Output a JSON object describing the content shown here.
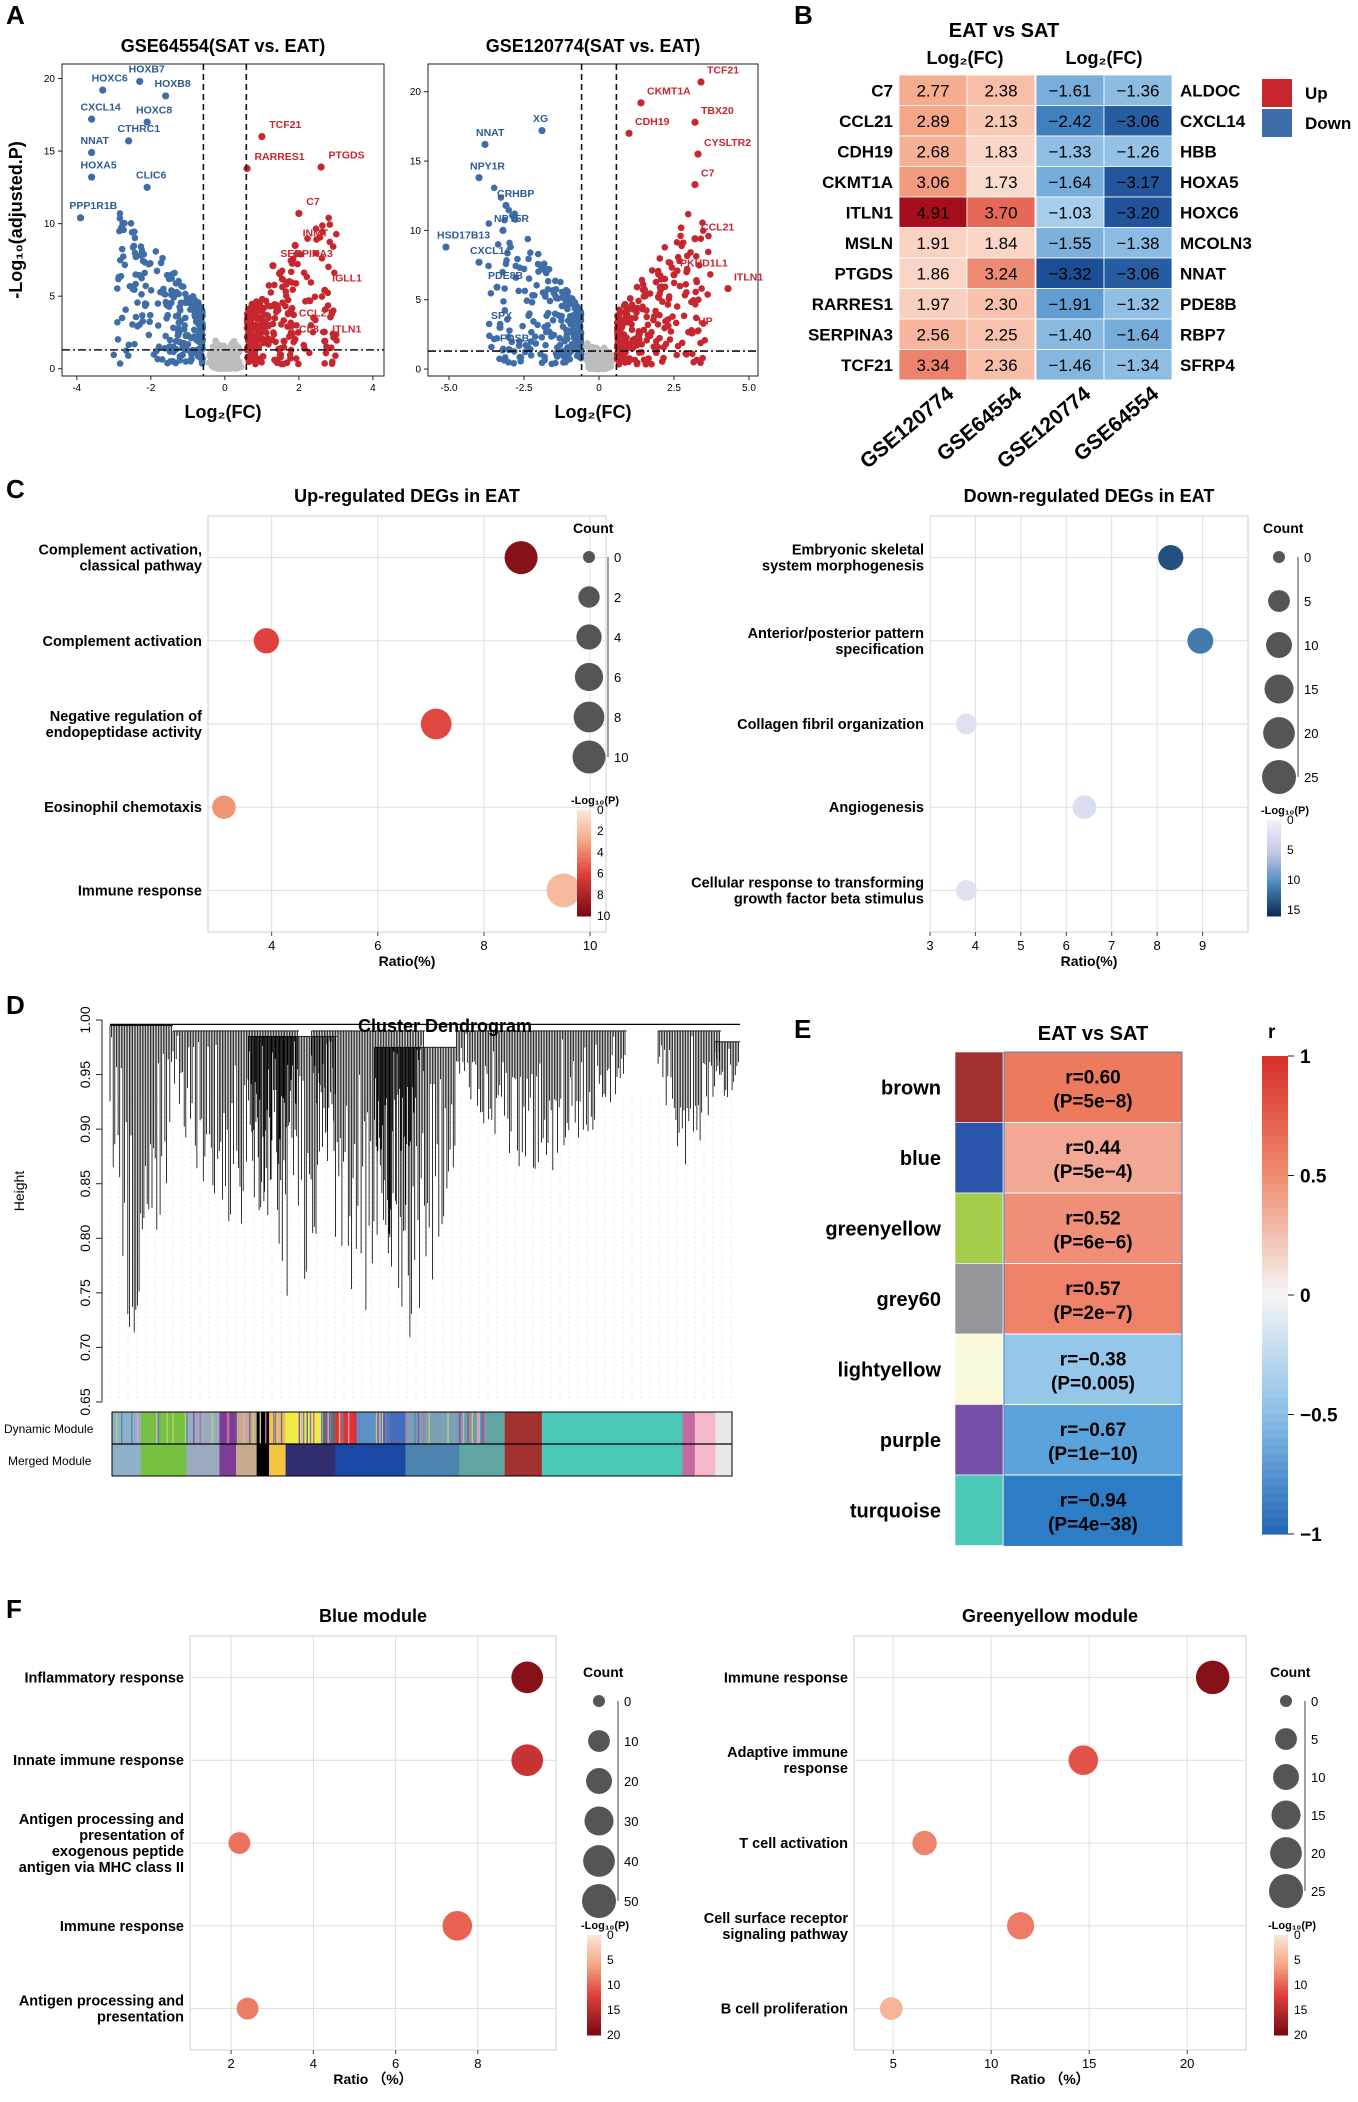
{
  "panels": {
    "A": "A",
    "B": "B",
    "C": "C",
    "D": "D",
    "E": "E",
    "F": "F"
  },
  "colors": {
    "up": "#c8262e",
    "down": "#3f6da8",
    "ns": "#bdbdbd",
    "text_red": "#c8262e",
    "text_blue": "#2e5c93"
  },
  "chart_data": [
    {
      "id": "volcano1",
      "type": "scatter",
      "title": "GSE64554(SAT vs. EAT)",
      "xlabel": "Log₂(FC)",
      "ylabel": "-Log₁₀(adjusted.P)",
      "xlim": [
        -4.4,
        4.3
      ],
      "ylim": [
        -0.5,
        21
      ],
      "xticks": [
        -4,
        -2,
        0,
        2,
        4
      ],
      "xtick_labels": [
        "-4",
        "-2",
        "0",
        "2",
        "4"
      ],
      "yticks": [
        0,
        5,
        10,
        15,
        20
      ],
      "ytick_labels": [
        "0",
        "5",
        "10",
        "15",
        "20"
      ],
      "vlines": [
        -0.58,
        0.58
      ],
      "hline": 1.3,
      "labels_down": [
        {
          "text": "HOXC6",
          "x": -3.6,
          "y": 19.8
        },
        {
          "text": "HOXB7",
          "x": -2.6,
          "y": 20.4
        },
        {
          "text": "HOXB8",
          "x": -1.9,
          "y": 19.4
        },
        {
          "text": "CXCL14",
          "x": -3.9,
          "y": 17.8
        },
        {
          "text": "HOXC8",
          "x": -2.4,
          "y": 17.6
        },
        {
          "text": "CTHRC1",
          "x": -2.9,
          "y": 16.3
        },
        {
          "text": "NNAT",
          "x": -3.9,
          "y": 15.5
        },
        {
          "text": "HOXA5",
          "x": -3.9,
          "y": 13.8
        },
        {
          "text": "CLIC6",
          "x": -2.4,
          "y": 13.1
        },
        {
          "text": "PPP1R1B",
          "x": -4.2,
          "y": 11.0
        }
      ],
      "labels_up": [
        {
          "text": "TCF21",
          "x": 1.2,
          "y": 16.6
        },
        {
          "text": "PTGDS",
          "x": 2.8,
          "y": 14.5
        },
        {
          "text": "RARRES1",
          "x": 0.8,
          "y": 14.4
        },
        {
          "text": "C7",
          "x": 2.2,
          "y": 11.3
        },
        {
          "text": "INMT",
          "x": 2.1,
          "y": 9.1
        },
        {
          "text": "SERPINA3",
          "x": 1.5,
          "y": 7.7
        },
        {
          "text": "IGLL1",
          "x": 2.9,
          "y": 6.0
        },
        {
          "text": "CCL21",
          "x": 2.0,
          "y": 3.6
        },
        {
          "text": "CCL8",
          "x": 1.8,
          "y": 2.5
        },
        {
          "text": "ITLN1",
          "x": 2.9,
          "y": 2.5
        }
      ]
    },
    {
      "id": "volcano2",
      "type": "scatter",
      "title": "GSE120774(SAT vs. EAT)",
      "xlabel": "Log₂(FC)",
      "ylabel": "",
      "xlim": [
        -5.7,
        5.3
      ],
      "ylim": [
        -0.5,
        22
      ],
      "xticks": [
        -5,
        -2.5,
        0,
        2.5,
        5
      ],
      "xtick_labels": [
        "-5.0",
        "-2.5",
        "0",
        "2.5",
        "5.0"
      ],
      "yticks": [
        0,
        5,
        10,
        15,
        20
      ],
      "ytick_labels": [
        "0",
        "5",
        "10",
        "15",
        "20"
      ],
      "vlines": [
        -0.58,
        0.58
      ],
      "hline": 1.3,
      "labels_down": [
        {
          "text": "XG",
          "x": -2.2,
          "y": 17.8
        },
        {
          "text": "NNAT",
          "x": -4.1,
          "y": 16.8
        },
        {
          "text": "NPY1R",
          "x": -4.3,
          "y": 14.4
        },
        {
          "text": "CRHBP",
          "x": -3.4,
          "y": 12.4
        },
        {
          "text": "NPY5R",
          "x": -3.5,
          "y": 10.6
        },
        {
          "text": "HSD17B13",
          "x": -5.4,
          "y": 9.4
        },
        {
          "text": "CXCL14",
          "x": -4.3,
          "y": 8.3
        },
        {
          "text": "PDE8B",
          "x": -3.7,
          "y": 6.5
        },
        {
          "text": "SPX",
          "x": -3.6,
          "y": 3.6
        },
        {
          "text": "FOSB",
          "x": -3.3,
          "y": 2.0
        }
      ],
      "labels_up": [
        {
          "text": "TCF21",
          "x": 3.6,
          "y": 21.3
        },
        {
          "text": "CKMT1A",
          "x": 1.6,
          "y": 19.8
        },
        {
          "text": "TBX20",
          "x": 3.4,
          "y": 18.4
        },
        {
          "text": "CDH19",
          "x": 1.2,
          "y": 17.6
        },
        {
          "text": "CYSLTR2",
          "x": 3.5,
          "y": 16.1
        },
        {
          "text": "C7",
          "x": 3.4,
          "y": 13.9
        },
        {
          "text": "CCL21",
          "x": 3.4,
          "y": 10.0
        },
        {
          "text": "PKHD1L1",
          "x": 2.7,
          "y": 7.4
        },
        {
          "text": "ITLN1",
          "x": 4.5,
          "y": 6.4
        },
        {
          "text": "HP",
          "x": 3.3,
          "y": 3.2
        }
      ]
    },
    {
      "id": "heatmap",
      "type": "heatmap",
      "title": "EAT vs SAT",
      "group_labels": [
        "Log₂(FC)",
        "Log₂(FC)"
      ],
      "columns": [
        "GSE120774",
        "GSE64554",
        "GSE120774",
        "GSE64554"
      ],
      "legend": [
        {
          "label": "Up",
          "color": "#c8262e"
        },
        {
          "label": "Down",
          "color": "#3f6da8"
        }
      ],
      "up_genes": [
        "C7",
        "CCL21",
        "CDH19",
        "CKMT1A",
        "ITLN1",
        "MSLN",
        "PTGDS",
        "RARRES1",
        "SERPINA3",
        "TCF21"
      ],
      "up_values": [
        [
          2.77,
          2.38
        ],
        [
          2.89,
          2.13
        ],
        [
          2.68,
          1.83
        ],
        [
          3.06,
          1.73
        ],
        [
          4.91,
          3.7
        ],
        [
          1.91,
          1.84
        ],
        [
          1.86,
          3.24
        ],
        [
          1.97,
          2.3
        ],
        [
          2.56,
          2.25
        ],
        [
          3.34,
          2.36
        ]
      ],
      "up_labels": [
        [
          "2.77",
          "2.38"
        ],
        [
          "2.89",
          "2.13"
        ],
        [
          "2.68",
          "1.83"
        ],
        [
          "3.06",
          "1.73"
        ],
        [
          "4.91",
          "3.70"
        ],
        [
          "1.91",
          "1.84"
        ],
        [
          "1.86",
          "3.24"
        ],
        [
          "1.97",
          "2.30"
        ],
        [
          "2.56",
          "2.25"
        ],
        [
          "3.34",
          "2.36"
        ]
      ],
      "down_genes": [
        "ALDOC",
        "CXCL14",
        "HBB",
        "HOXA5",
        "HOXC6",
        "MCOLN3",
        "NNAT",
        "PDE8B",
        "RBP7",
        "SFRP4"
      ],
      "down_values": [
        [
          -1.61,
          -1.36
        ],
        [
          -2.42,
          -3.06
        ],
        [
          -1.33,
          -1.26
        ],
        [
          -1.64,
          -3.17
        ],
        [
          -1.03,
          -3.2
        ],
        [
          -1.55,
          -1.38
        ],
        [
          -3.32,
          -3.06
        ],
        [
          -1.91,
          -1.32
        ],
        [
          -1.4,
          -1.64
        ],
        [
          -1.46,
          -1.34
        ]
      ],
      "down_labels": [
        [
          "−1.61",
          "−1.36"
        ],
        [
          "−2.42",
          "−3.06"
        ],
        [
          "−1.33",
          "−1.26"
        ],
        [
          "−1.64",
          "−3.17"
        ],
        [
          "−1.03",
          "−3.20"
        ],
        [
          "−1.55",
          "−1.38"
        ],
        [
          "−3.32",
          "−3.06"
        ],
        [
          "−1.91",
          "−1.32"
        ],
        [
          "−1.40",
          "−1.64"
        ],
        [
          "−1.46",
          "−1.34"
        ]
      ]
    },
    {
      "id": "bubbleC1",
      "type": "scatter",
      "title": "Up-regulated DEGs in EAT",
      "xlabel": "Ratio(%)",
      "xlim": [
        2.8,
        10.3
      ],
      "xticks": [
        4,
        6,
        8,
        10
      ],
      "xtick_labels": [
        "4",
        "6",
        "8",
        "10"
      ],
      "palette": "red",
      "terms": [
        {
          "label": [
            "Complement activation,",
            "classical pathway"
          ],
          "ratio": 8.7,
          "count": 10,
          "logp": 9.5
        },
        {
          "label": [
            "Complement activation"
          ],
          "ratio": 3.9,
          "count": 4,
          "logp": 6.0
        },
        {
          "label": [
            "Negative regulation of",
            "endopeptidase activity"
          ],
          "ratio": 7.1,
          "count": 8,
          "logp": 5.8
        },
        {
          "label": [
            "Eosinophil chemotaxis"
          ],
          "ratio": 3.1,
          "count": 3,
          "logp": 3.5
        },
        {
          "label": [
            "Immune response"
          ],
          "ratio": 9.5,
          "count": 11,
          "logp": 2.0
        }
      ],
      "size_legend": {
        "title": "Count",
        "values": [
          0,
          2,
          4,
          6,
          8,
          10
        ],
        "labels": [
          "0",
          "2",
          "4",
          "6",
          "8",
          "10"
        ],
        "max": 11
      },
      "color_legend": {
        "title": "-Log₁₀(P)",
        "ticks": [
          0,
          2,
          4,
          6,
          8,
          10
        ],
        "labels": [
          "0",
          "2",
          "4",
          "6",
          "8",
          "10"
        ],
        "max": 10
      }
    },
    {
      "id": "bubbleC2",
      "type": "scatter",
      "title": "Down-regulated DEGs in EAT",
      "xlabel": "Ratio(%)",
      "xlim": [
        3,
        10
      ],
      "xticks": [
        3,
        4,
        5,
        6,
        7,
        8,
        9
      ],
      "xtick_labels": [
        "3",
        "4",
        "5",
        "6",
        "7",
        "8",
        "9"
      ],
      "palette": "blue",
      "terms": [
        {
          "label": [
            "Embryonic skeletal",
            "system morphogenesis"
          ],
          "ratio": 8.3,
          "count": 9,
          "logp": 14.0
        },
        {
          "label": [
            "Anterior/posterior pattern",
            "specification"
          ],
          "ratio": 8.95,
          "count": 10,
          "logp": 11.5
        },
        {
          "label": [
            "Collagen fibril organization"
          ],
          "ratio": 3.8,
          "count": 4,
          "logp": 2.0
        },
        {
          "label": [
            "Angiogenesis"
          ],
          "ratio": 6.4,
          "count": 7,
          "logp": 2.5
        },
        {
          "label": [
            "Cellular response to transforming",
            "growth factor beta stimulus"
          ],
          "ratio": 3.8,
          "count": 4,
          "logp": 2.0
        }
      ],
      "size_legend": {
        "title": "Count",
        "values": [
          0,
          5,
          10,
          15,
          20,
          25
        ],
        "labels": [
          "0",
          "5",
          "10",
          "15",
          "20",
          "25"
        ],
        "max": 25
      },
      "color_legend": {
        "title": "-Log₁₀(P)",
        "ticks": [
          0,
          5,
          10,
          15
        ],
        "labels": [
          "0",
          "5",
          "10",
          "15"
        ],
        "max": 16
      }
    },
    {
      "id": "dendrogram",
      "type": "other",
      "title": "Cluster Dendrogram",
      "ylabel": "Height",
      "ylim": [
        0.65,
        1.0
      ],
      "yticks": [
        0.65,
        0.7,
        0.75,
        0.8,
        0.85,
        0.9,
        0.95,
        1.0
      ],
      "ytick_labels": [
        "0.65",
        "0.70",
        "0.75",
        "0.80",
        "0.85",
        "0.90",
        "0.95",
        "1.00"
      ],
      "row_labels": [
        "Dynamic Module",
        "Merged Module"
      ]
    },
    {
      "id": "moduleTrait",
      "type": "heatmap",
      "title": "EAT vs SAT",
      "modules": [
        {
          "name": "brown",
          "color": "#a1312f",
          "r": 0.6,
          "r_label": "r=0.60",
          "p_label": "(P=5e−8)",
          "fill": "#ee7a5e"
        },
        {
          "name": "blue",
          "color": "#2b55ad",
          "r": 0.44,
          "r_label": "r=0.44",
          "p_label": "(P=5e−4)",
          "fill": "#f3a896"
        },
        {
          "name": "greenyellow",
          "color": "#a4cd4b",
          "r": 0.52,
          "r_label": "r=0.52",
          "p_label": "(P=6e−6)",
          "fill": "#f08f78"
        },
        {
          "name": "grey60",
          "color": "#96969a",
          "r": 0.57,
          "r_label": "r=0.57",
          "p_label": "(P=2e−7)",
          "fill": "#ee8268"
        },
        {
          "name": "lightyellow",
          "color": "#f8f7da",
          "r": -0.38,
          "r_label": "r=−0.38",
          "p_label": "(P=0.005)",
          "fill": "#95c7ea"
        },
        {
          "name": "purple",
          "color": "#764fa6",
          "r": -0.67,
          "r_label": "r=−0.67",
          "p_label": "(P=1e−10)",
          "fill": "#5aa3dc"
        },
        {
          "name": "turquoise",
          "color": "#4bc8b8",
          "r": -0.94,
          "r_label": "r=−0.94",
          "p_label": "(P=4e−38)",
          "fill": "#2d7dc6"
        }
      ],
      "colorbar": {
        "title": "r",
        "ticks": [
          1,
          0.5,
          0,
          -0.5,
          -1
        ],
        "labels": [
          "1",
          "0.5",
          "0",
          "−0.5",
          "−1"
        ]
      }
    },
    {
      "id": "bubbleF1",
      "type": "scatter",
      "title": "Blue module",
      "xlabel": "Ratio （%）",
      "xlim": [
        1,
        9.9
      ],
      "xticks": [
        2,
        4,
        6,
        8
      ],
      "xtick_labels": [
        "2",
        "4",
        "6",
        "8"
      ],
      "palette": "red",
      "terms": [
        {
          "label": [
            "Inflammatory response"
          ],
          "ratio": 9.2,
          "count": 40,
          "logp": 19.0
        },
        {
          "label": [
            "Innate immune response"
          ],
          "ratio": 9.2,
          "count": 40,
          "logp": 14.0
        },
        {
          "label": [
            "Antigen processing and",
            "presentation of",
            "exogenous peptide",
            "antigen via MHC class II"
          ],
          "ratio": 2.2,
          "count": 10,
          "logp": 9.0
        },
        {
          "label": [
            "Immune response"
          ],
          "ratio": 7.5,
          "count": 32,
          "logp": 10.0
        },
        {
          "label": [
            "Antigen processing and",
            "presentation"
          ],
          "ratio": 2.4,
          "count": 10,
          "logp": 8.5
        }
      ],
      "size_legend": {
        "title": "Count",
        "values": [
          0,
          10,
          20,
          30,
          40,
          50
        ],
        "labels": [
          "0",
          "10",
          "20",
          "30",
          "40",
          "50"
        ],
        "max": 50
      },
      "color_legend": {
        "title": "-Log₁₀(P)",
        "ticks": [
          0,
          5,
          10,
          15,
          20
        ],
        "labels": [
          "0",
          "5",
          "10",
          "15",
          "20"
        ],
        "max": 20
      }
    },
    {
      "id": "bubbleF2",
      "type": "scatter",
      "title": "Greenyellow module",
      "xlabel": "Ratio （%）",
      "xlim": [
        3,
        23
      ],
      "xticks": [
        5,
        10,
        15,
        20
      ],
      "xtick_labels": [
        "5",
        "10",
        "15",
        "20"
      ],
      "palette": "red",
      "terms": [
        {
          "label": [
            "Immune response"
          ],
          "ratio": 21.3,
          "count": 24,
          "logp": 19.0
        },
        {
          "label": [
            "Adaptive immune",
            "response"
          ],
          "ratio": 14.7,
          "count": 16,
          "logp": 11.0
        },
        {
          "label": [
            "T cell activation"
          ],
          "ratio": 6.6,
          "count": 8,
          "logp": 8.0
        },
        {
          "label": [
            "Cell surface receptor",
            "signaling pathway"
          ],
          "ratio": 11.5,
          "count": 12,
          "logp": 8.5
        },
        {
          "label": [
            "B cell proliferation"
          ],
          "ratio": 4.9,
          "count": 6,
          "logp": 4.5
        }
      ],
      "size_legend": {
        "title": "Count",
        "values": [
          0,
          5,
          10,
          15,
          20,
          25
        ],
        "labels": [
          "0",
          "5",
          "10",
          "15",
          "20",
          "25"
        ],
        "max": 25
      },
      "color_legend": {
        "title": "-Log₁₀(P)",
        "ticks": [
          0,
          5,
          10,
          15,
          20
        ],
        "labels": [
          "0",
          "5",
          "10",
          "15",
          "20"
        ],
        "max": 20
      }
    }
  ]
}
